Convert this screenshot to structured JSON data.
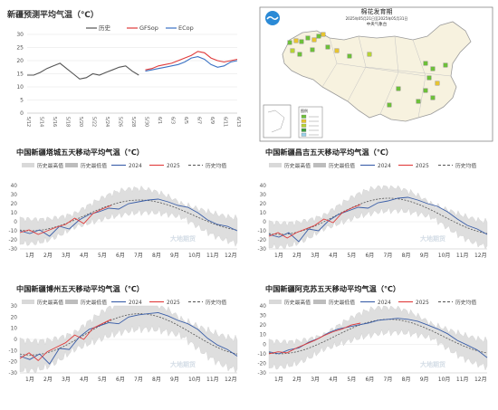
{
  "chart_data": [
    {
      "type": "line",
      "title": "新疆预测平均气温（℃）",
      "categories": [
        "5/12",
        "5/14",
        "5/16",
        "5/18",
        "5/20",
        "5/22",
        "5/24",
        "5/26",
        "5/28",
        "5/30",
        "6/1",
        "6/3",
        "6/5",
        "6/7",
        "6/9",
        "6/11",
        "6/13"
      ],
      "ylim": [
        0,
        30
      ],
      "yticks": [
        0,
        5,
        10,
        15,
        20,
        25,
        30
      ],
      "grid": true,
      "legend": "top",
      "series": [
        {
          "name": "历史",
          "color": "#555555",
          "x": [
            0,
            1,
            2,
            3,
            4,
            5,
            6,
            7,
            8,
            9,
            10,
            11,
            12,
            13,
            14,
            15,
            16,
            17,
            18,
            19,
            20,
            21,
            22,
            23,
            24,
            25,
            26,
            27,
            28,
            29,
            30,
            31,
            32
          ],
          "values": [
            14.5,
            14.5,
            15.5,
            17,
            18,
            19,
            17,
            15,
            13,
            13.5,
            15,
            14.5,
            15.5,
            16.5,
            17.5,
            18,
            16,
            14.5,
            null,
            null,
            null,
            null,
            null,
            null,
            null,
            null,
            null,
            null,
            null,
            null,
            null,
            null,
            null
          ]
        },
        {
          "name": "GFSop",
          "color": "#e03b3b",
          "x": [
            18,
            19,
            20,
            21,
            22,
            23,
            24,
            25,
            26,
            27,
            28,
            29,
            30,
            31,
            32
          ],
          "values": [
            16.5,
            17,
            18,
            18.5,
            19,
            20,
            21,
            22,
            23.5,
            23,
            21,
            20,
            19.5,
            20,
            20.5
          ]
        },
        {
          "name": "ECop",
          "color": "#3b72c4",
          "x": [
            18,
            19,
            20,
            21,
            22,
            23,
            24,
            25,
            26,
            27,
            28,
            29,
            30,
            31,
            32
          ],
          "values": [
            16,
            16.5,
            17,
            17.5,
            18,
            18.5,
            19.5,
            21,
            21.5,
            20.5,
            18.5,
            17.5,
            18,
            19.5,
            20
          ]
        }
      ]
    },
    {
      "type": "line",
      "title": "中国新疆塔城五天移动平均气温（℃）",
      "categories": [
        "1月",
        "2月",
        "3月",
        "4月",
        "5月",
        "6月",
        "7月",
        "8月",
        "9月",
        "10月",
        "11月",
        "12月"
      ],
      "ylim": [
        -30,
        40
      ],
      "yticks": [
        -30,
        -20,
        -10,
        0,
        10,
        20,
        30,
        40
      ],
      "legend": "top",
      "legend_labels": [
        "历史最高值",
        "历史最低值",
        "2024",
        "2025",
        "历史均值"
      ],
      "mean": {
        "peak": 24,
        "trough": -10,
        "start": -11
      },
      "y2024": [
        -10,
        -13,
        -9,
        -16,
        -5,
        -8,
        2,
        8,
        11,
        15,
        14,
        20,
        22,
        24,
        25,
        22,
        18,
        16,
        10,
        2,
        -3,
        -5,
        -10
      ],
      "y2025": [
        -12,
        -9,
        -14,
        -10,
        -6,
        -3,
        4,
        -2,
        9,
        14,
        18
      ]
    },
    {
      "type": "line",
      "title": "中国新疆昌吉五天移动平均气温（℃）",
      "categories": [
        "1月",
        "2月",
        "3月",
        "4月",
        "5月",
        "6月",
        "7月",
        "8月",
        "9月",
        "10月",
        "11月",
        "12月"
      ],
      "ylim": [
        -30,
        40
      ],
      "yticks": [
        -30,
        -20,
        -10,
        0,
        10,
        20,
        30,
        40
      ],
      "legend": "top",
      "legend_labels": [
        "历史最高值",
        "历史最低值",
        "2024",
        "2025",
        "历史均值"
      ],
      "mean": {
        "peak": 26,
        "trough": -14,
        "start": -15
      },
      "y2024": [
        -14,
        -17,
        -12,
        -22,
        -8,
        -10,
        1,
        8,
        12,
        16,
        15,
        21,
        23,
        26,
        27,
        24,
        20,
        17,
        11,
        3,
        -4,
        -8,
        -14
      ],
      "y2025": [
        -16,
        -12,
        -18,
        -12,
        -8,
        -4,
        3,
        -1,
        10,
        15,
        19
      ]
    },
    {
      "type": "line",
      "title": "中国新疆博州五天移动平均气温（℃）",
      "categories": [
        "1月",
        "2月",
        "3月",
        "4月",
        "5月",
        "6月",
        "7月",
        "8月",
        "9月",
        "10月",
        "11月",
        "12月"
      ],
      "ylim": [
        -30,
        30
      ],
      "yticks": [
        -30,
        -20,
        -10,
        0,
        10,
        20,
        30
      ],
      "legend": "top",
      "legend_labels": [
        "历史最高值",
        "历史最低值",
        "2024",
        "2025",
        "历史均值"
      ],
      "mean": {
        "peak": 23,
        "trough": -14,
        "start": -15
      },
      "y2024": [
        -15,
        -18,
        -13,
        -22,
        -8,
        -9,
        2,
        9,
        12,
        15,
        14,
        20,
        22,
        23,
        24,
        21,
        17,
        14,
        9,
        1,
        -5,
        -9,
        -15
      ],
      "y2025": [
        -17,
        -12,
        -19,
        -11,
        -7,
        -3,
        4,
        0,
        10,
        14,
        18
      ]
    },
    {
      "type": "line",
      "title": "中国新疆阿克苏五天移动平均气温（℃）",
      "categories": [
        "1月",
        "2月",
        "3月",
        "4月",
        "5月",
        "6月",
        "7月",
        "8月",
        "9月",
        "10月",
        "11月",
        "12月"
      ],
      "ylim": [
        -30,
        40
      ],
      "yticks": [
        -30,
        -20,
        -10,
        0,
        10,
        20,
        30,
        40
      ],
      "legend": "top",
      "legend_labels": [
        "历史最高值",
        "历史最低值",
        "2024",
        "2025",
        "历史均值"
      ],
      "mean": {
        "peak": 26,
        "trough": -10,
        "start": -8
      },
      "y2024": [
        -8,
        -10,
        -6,
        -4,
        2,
        6,
        12,
        16,
        18,
        20,
        22,
        25,
        26,
        27,
        26,
        24,
        20,
        16,
        11,
        4,
        -1,
        -6,
        -14
      ],
      "y2025": [
        -10,
        -8,
        -9,
        -4,
        0,
        4,
        9,
        13,
        16,
        20,
        22
      ]
    }
  ],
  "map": {
    "title": "棉花发育期",
    "subtitle": "2025年05月21日至2025年05月31日",
    "agency": "中央气象台",
    "legend_title": "图例"
  },
  "watermark": "大地期货"
}
